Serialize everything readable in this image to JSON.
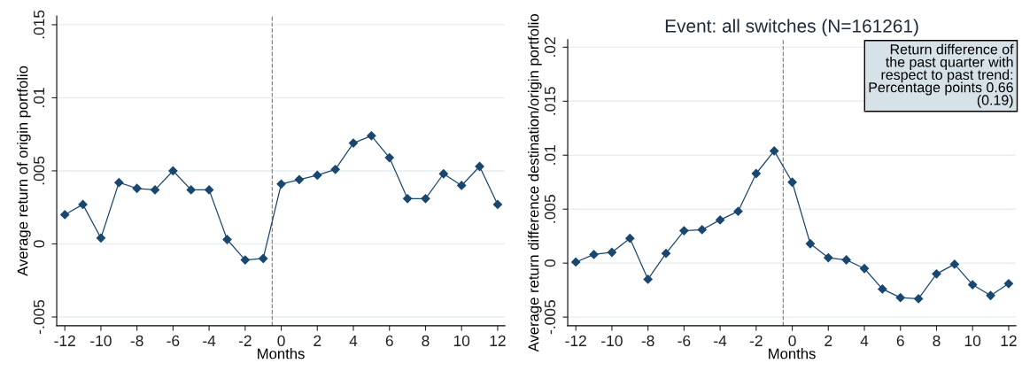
{
  "chart_data": [
    {
      "type": "line",
      "xlabel": "Months",
      "ylabel": "Average return of origin portfolio",
      "x": [
        -12,
        -11,
        -10,
        -9,
        -8,
        -7,
        -6,
        -5,
        -4,
        -3,
        -2,
        -1,
        0,
        1,
        2,
        3,
        4,
        5,
        6,
        7,
        8,
        9,
        10,
        11,
        12
      ],
      "series": [
        {
          "color": "#1a476f",
          "values": [
            0.002,
            0.0027,
            0.0004,
            0.0042,
            0.0038,
            0.0037,
            0.005,
            0.0037,
            0.0037,
            0.0003,
            -0.0011,
            -0.001,
            0.0041,
            0.0044,
            0.0047,
            0.0051,
            0.0069,
            0.0074,
            0.0059,
            0.0031,
            0.0031,
            0.0048,
            0.004,
            0.0053,
            0.0027
          ]
        }
      ],
      "xlim": [
        -12.45,
        12.4
      ],
      "xticks": [
        -12,
        -10,
        -8,
        -6,
        -4,
        -2,
        0,
        2,
        4,
        6,
        8,
        10,
        12
      ],
      "ylim": [
        -0.0056,
        0.0156
      ],
      "yticks": [
        {
          "value": -0.005,
          "label": "-.005"
        },
        0,
        {
          "value": 0.005,
          "label": ".005"
        },
        {
          "value": 0.01,
          "label": ".01"
        },
        {
          "value": 0.015,
          "label": ".015"
        }
      ],
      "ref_lines": [
        {
          "axis": "x",
          "value": -0.5,
          "color": "#888888",
          "line_style": "dashed"
        }
      ],
      "grid": "y",
      "marker": "diamond",
      "line_style": "solid"
    },
    {
      "type": "line",
      "title": "Event: all switches (N=161261)",
      "xlabel": "Months",
      "ylabel": "Average return difference destination/origin portfolio",
      "x": [
        -12,
        -11,
        -10,
        -9,
        -8,
        -7,
        -6,
        -5,
        -4,
        -3,
        -2,
        -1,
        0,
        1,
        2,
        3,
        4,
        5,
        6,
        7,
        8,
        9,
        10,
        11,
        12
      ],
      "series": [
        {
          "color": "#1a476f",
          "values": [
            0.0001,
            0.0008,
            0.001,
            0.0023,
            -0.0015,
            0.0009,
            0.003,
            0.0031,
            0.004,
            0.0048,
            0.0083,
            0.0104,
            0.0075,
            0.0018,
            0.0005,
            0.0003,
            -0.0005,
            -0.0024,
            -0.0032,
            -0.0033,
            -0.001,
            -0.0001,
            -0.002,
            -0.003,
            -0.0019
          ]
        }
      ],
      "xlim": [
        -12.45,
        12.4
      ],
      "xticks": [
        -12,
        -10,
        -8,
        -6,
        -4,
        -2,
        0,
        2,
        4,
        6,
        8,
        10,
        12
      ],
      "ylim": [
        -0.0058,
        0.0207
      ],
      "yticks": [
        {
          "value": -0.005,
          "label": "-.005"
        },
        0,
        {
          "value": 0.005,
          "label": ".005"
        },
        {
          "value": 0.01,
          "label": ".01"
        },
        {
          "value": 0.015,
          "label": ".015"
        },
        {
          "value": 0.02,
          "label": ".02"
        }
      ],
      "ref_lines": [
        {
          "axis": "x",
          "value": -0.5,
          "color": "#888888",
          "line_style": "dashed"
        }
      ],
      "annotations": [
        "Return difference of\nthe past quarter with\nrespect to past trend:\nPercentage points 0.66\n(0.19)"
      ],
      "grid": "y",
      "marker": "diamond",
      "line_style": "solid"
    }
  ]
}
